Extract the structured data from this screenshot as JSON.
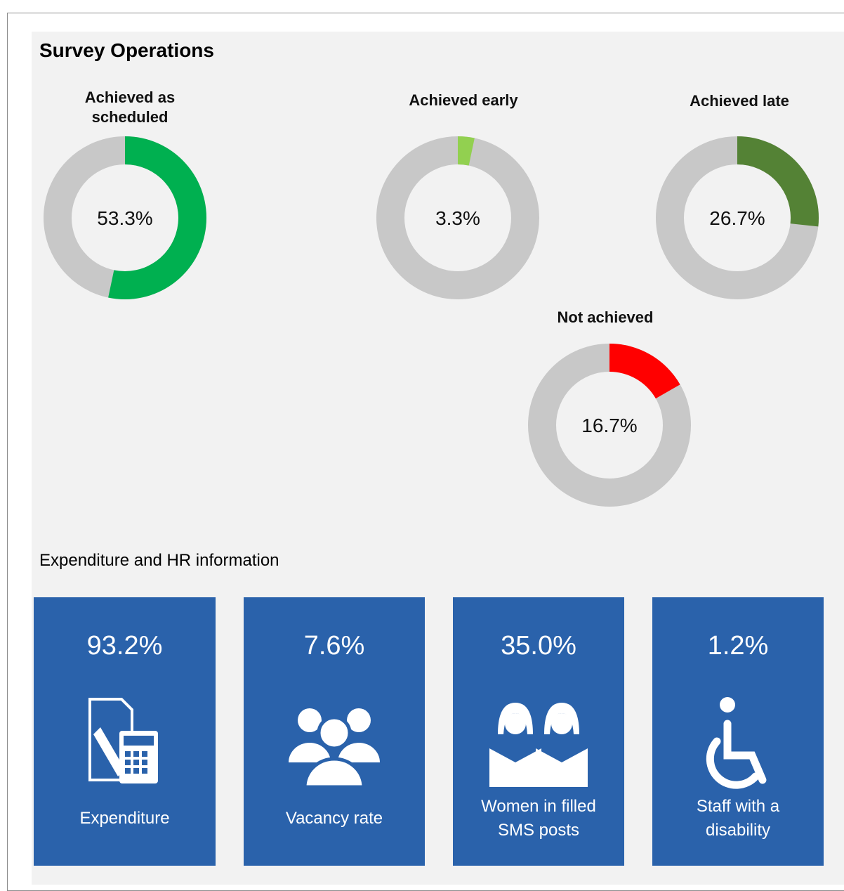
{
  "title": "Survey Operations",
  "chart_data": [
    {
      "type": "donut",
      "title": "Achieved as scheduled",
      "values": [
        53.3
      ],
      "value_labels": [
        "53.3%"
      ],
      "color": "#00b050"
    },
    {
      "type": "donut",
      "title": "Achieved early",
      "values": [
        3.3
      ],
      "value_labels": [
        "3.3%"
      ],
      "color": "#92d050"
    },
    {
      "type": "donut",
      "title": "Achieved late",
      "values": [
        26.7
      ],
      "value_labels": [
        "26.7%"
      ],
      "color": "#548235"
    },
    {
      "type": "donut",
      "title": "Not achieved",
      "values": [
        16.7
      ],
      "value_labels": [
        "16.7%"
      ],
      "color": "#ff0000"
    }
  ],
  "section_title": "Expenditure and HR information",
  "tiles": [
    {
      "value": "93.2%",
      "label": "Expenditure"
    },
    {
      "value": "7.6%",
      "label": "Vacancy rate"
    },
    {
      "value": "35.0%",
      "label": "Women in filled SMS posts"
    },
    {
      "value": "1.2%",
      "label": "Staff with a disability"
    }
  ]
}
